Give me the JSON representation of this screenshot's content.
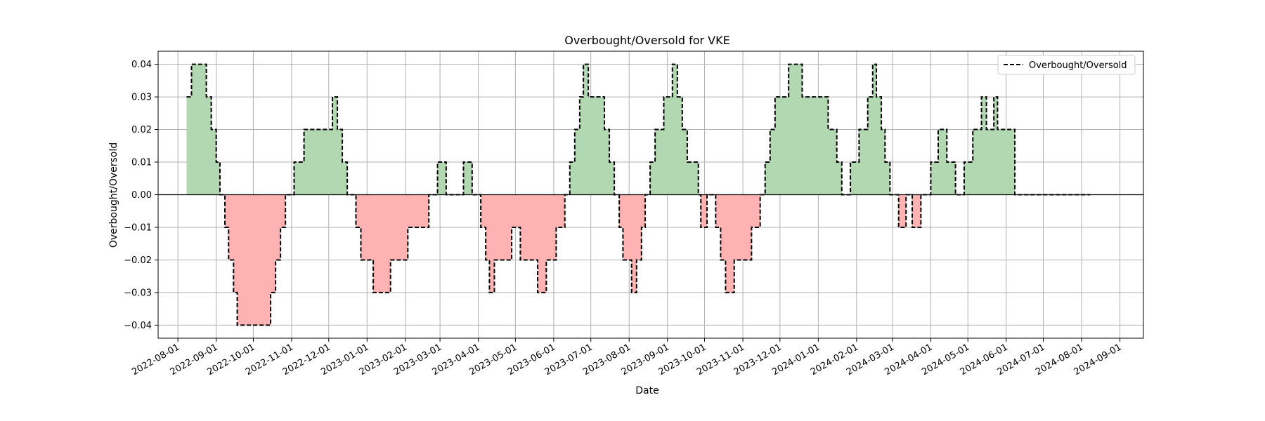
{
  "chart_data": {
    "type": "area",
    "title": "Overbought/Oversold for VKE",
    "xlabel": "Date",
    "ylabel": "Overbought/Oversold",
    "legend": {
      "position": "top-right",
      "entries": [
        "Overbought/Oversold"
      ]
    },
    "grid": true,
    "xlim": [
      "2022-07-16",
      "2024-09-20"
    ],
    "ylim": [
      -0.044,
      0.044
    ],
    "x_ticks": [
      "2022-08-01",
      "2022-09-01",
      "2022-10-01",
      "2022-11-01",
      "2022-12-01",
      "2023-01-01",
      "2023-02-01",
      "2023-03-01",
      "2023-04-01",
      "2023-05-01",
      "2023-06-01",
      "2023-07-01",
      "2023-08-01",
      "2023-09-01",
      "2023-10-01",
      "2023-11-01",
      "2023-12-01",
      "2024-01-01",
      "2024-02-01",
      "2024-03-01",
      "2024-04-01",
      "2024-05-01",
      "2024-06-01",
      "2024-07-01",
      "2024-08-01",
      "2024-09-01"
    ],
    "y_ticks": [
      -0.04,
      -0.03,
      -0.02,
      -0.01,
      0.0,
      0.01,
      0.02,
      0.03,
      0.04
    ],
    "y_tick_labels": [
      "−0.04",
      "−0.03",
      "−0.02",
      "−0.01",
      "0.00",
      "0.01",
      "0.02",
      "0.03",
      "0.04"
    ],
    "colors": {
      "positive_fill": "#b2d8b2",
      "negative_fill": "#ffb2b2",
      "line": "#000000",
      "zero_line": "#000000",
      "grid": "#b0b0b0"
    },
    "series": [
      {
        "name": "Overbought/Oversold",
        "style": "dashed",
        "x": [
          "2022-08-08",
          "2022-08-12",
          "2022-08-24",
          "2022-08-28",
          "2022-09-01",
          "2022-09-04",
          "2022-09-08",
          "2022-09-11",
          "2022-09-15",
          "2022-09-18",
          "2022-10-15",
          "2022-10-19",
          "2022-10-23",
          "2022-10-27",
          "2022-11-03",
          "2022-11-11",
          "2022-12-04",
          "2022-12-08",
          "2022-12-12",
          "2022-12-16",
          "2022-12-23",
          "2022-12-27",
          "2023-01-06",
          "2023-01-20",
          "2023-02-03",
          "2023-02-20",
          "2023-02-27",
          "2023-03-06",
          "2023-03-20",
          "2023-03-27",
          "2023-04-03",
          "2023-04-07",
          "2023-04-10",
          "2023-04-14",
          "2023-04-28",
          "2023-05-05",
          "2023-05-19",
          "2023-05-26",
          "2023-06-03",
          "2023-06-10",
          "2023-06-14",
          "2023-06-18",
          "2023-06-22",
          "2023-06-25",
          "2023-06-29",
          "2023-07-12",
          "2023-07-16",
          "2023-07-20",
          "2023-07-24",
          "2023-07-27",
          "2023-08-03",
          "2023-08-07",
          "2023-08-11",
          "2023-08-14",
          "2023-08-18",
          "2023-08-22",
          "2023-08-29",
          "2023-09-05",
          "2023-09-09",
          "2023-09-13",
          "2023-09-17",
          "2023-09-26",
          "2023-09-28",
          "2023-10-03",
          "2023-10-10",
          "2023-10-14",
          "2023-10-18",
          "2023-10-25",
          "2023-11-08",
          "2023-11-15",
          "2023-11-19",
          "2023-11-23",
          "2023-11-27",
          "2023-12-08",
          "2023-12-19",
          "2024-01-09",
          "2024-01-16",
          "2024-01-20",
          "2024-01-27",
          "2024-02-03",
          "2024-02-10",
          "2024-02-14",
          "2024-02-17",
          "2024-02-21",
          "2024-02-24",
          "2024-02-28",
          "2024-03-06",
          "2024-03-12",
          "2024-03-17",
          "2024-03-24",
          "2024-04-01",
          "2024-04-07",
          "2024-04-14",
          "2024-04-21",
          "2024-04-28",
          "2024-05-05",
          "2024-05-12",
          "2024-05-16",
          "2024-05-22",
          "2024-05-25",
          "2024-06-08",
          "2024-06-15",
          "2024-06-22",
          "2024-06-29",
          "2024-07-06",
          "2024-07-11",
          "2024-07-14",
          "2024-07-21",
          "2024-08-04",
          "2024-08-08"
        ],
        "y": [
          0.03,
          0.04,
          0.03,
          0.02,
          0.01,
          0.0,
          -0.01,
          -0.02,
          -0.03,
          -0.04,
          -0.03,
          -0.02,
          -0.01,
          0.0,
          0.01,
          0.02,
          0.03,
          0.02,
          0.01,
          0.0,
          -0.01,
          -0.02,
          -0.03,
          -0.02,
          -0.01,
          0.0,
          0.01,
          0.0,
          0.01,
          0.0,
          -0.01,
          -0.02,
          -0.03,
          -0.02,
          -0.01,
          -0.02,
          -0.03,
          -0.02,
          -0.01,
          0.0,
          0.01,
          0.02,
          0.03,
          0.04,
          0.03,
          0.02,
          0.01,
          0.0,
          -0.01,
          -0.02,
          -0.03,
          -0.02,
          -0.01,
          0.0,
          0.01,
          0.02,
          0.03,
          0.04,
          0.03,
          0.02,
          0.01,
          0.0,
          -0.01,
          0.0,
          -0.01,
          -0.02,
          -0.03,
          -0.02,
          -0.01,
          0.0,
          0.01,
          0.02,
          0.03,
          0.04,
          0.03,
          0.02,
          0.01,
          0.0,
          0.01,
          0.02,
          0.03,
          0.04,
          0.03,
          0.02,
          0.01,
          0.0,
          -0.01,
          0.0,
          -0.01,
          0.0,
          0.01,
          0.02,
          0.01,
          0.0,
          0.01,
          0.02,
          0.03,
          0.02,
          0.03,
          0.02,
          0.0,
          0.0,
          0.0,
          0.0,
          0.0,
          0.0,
          0.0,
          0.0,
          0.0,
          0.0
        ]
      }
    ]
  }
}
